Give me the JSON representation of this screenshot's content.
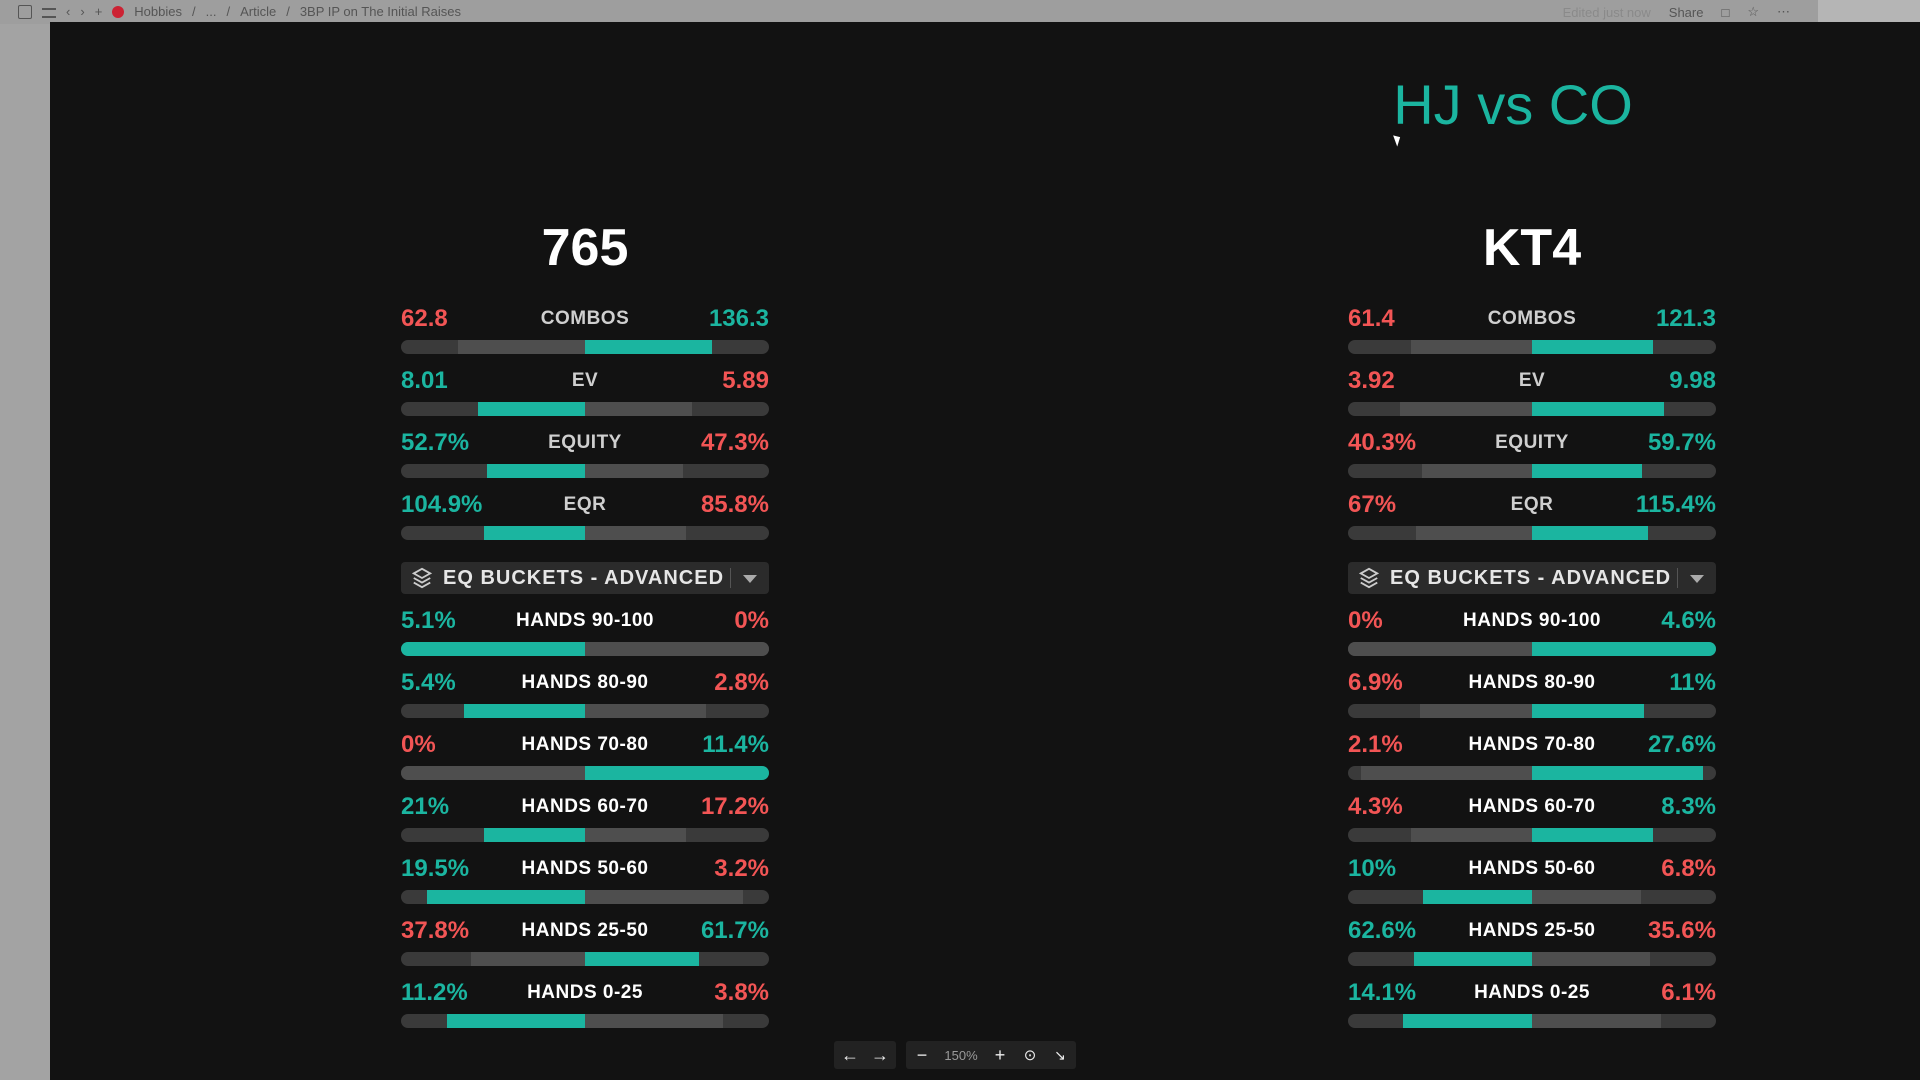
{
  "topbar": {
    "crumbs": [
      "Hobbies",
      "/",
      "...",
      "/",
      "Article",
      "/",
      "3BP IP on The Initial Raises"
    ],
    "edited": "Edited just now",
    "share": "Share"
  },
  "title": "HJ vs CO",
  "panels": [
    {
      "hand": "765",
      "stats": [
        {
          "label": "COMBOS",
          "left": "62.8",
          "right": "136.3",
          "left_color": "red",
          "right_color": "green",
          "fill_side": "right",
          "fill": 0.69
        },
        {
          "label": "EV",
          "left": "8.01",
          "right": "5.89",
          "left_color": "green",
          "right_color": "red",
          "fill_side": "left",
          "fill": 0.58
        },
        {
          "label": "EQUITY",
          "left": "52.7%",
          "right": "47.3%",
          "left_color": "green",
          "right_color": "red",
          "fill_side": "left",
          "fill": 0.53
        },
        {
          "label": "EQR",
          "left": "104.9%",
          "right": "85.8%",
          "left_color": "green",
          "right_color": "red",
          "fill_side": "left",
          "fill": 0.55
        }
      ],
      "bucket_select": "EQ BUCKETS - ADVANCED",
      "buckets": [
        {
          "label": "HANDS 90-100",
          "left": "5.1%",
          "right": "0%",
          "left_color": "green",
          "right_color": "red",
          "fill_side": "left",
          "fill": 1.0
        },
        {
          "label": "HANDS 80-90",
          "left": "5.4%",
          "right": "2.8%",
          "left_color": "green",
          "right_color": "red",
          "fill_side": "left",
          "fill": 0.66
        },
        {
          "label": "HANDS 70-80",
          "left": "0%",
          "right": "11.4%",
          "left_color": "red",
          "right_color": "green",
          "fill_side": "right",
          "fill": 1.0
        },
        {
          "label": "HANDS 60-70",
          "left": "21%",
          "right": "17.2%",
          "left_color": "green",
          "right_color": "red",
          "fill_side": "left",
          "fill": 0.55
        },
        {
          "label": "HANDS 50-60",
          "left": "19.5%",
          "right": "3.2%",
          "left_color": "green",
          "right_color": "red",
          "fill_side": "left",
          "fill": 0.86
        },
        {
          "label": "HANDS 25-50",
          "left": "37.8%",
          "right": "61.7%",
          "left_color": "red",
          "right_color": "green",
          "fill_side": "right",
          "fill": 0.62
        },
        {
          "label": "HANDS 0-25",
          "left": "11.2%",
          "right": "3.8%",
          "left_color": "green",
          "right_color": "red",
          "fill_side": "left",
          "fill": 0.75
        }
      ]
    },
    {
      "hand": "KT4",
      "stats": [
        {
          "label": "COMBOS",
          "left": "61.4",
          "right": "121.3",
          "left_color": "red",
          "right_color": "green",
          "fill_side": "right",
          "fill": 0.66
        },
        {
          "label": "EV",
          "left": "3.92",
          "right": "9.98",
          "left_color": "red",
          "right_color": "green",
          "fill_side": "right",
          "fill": 0.72
        },
        {
          "label": "EQUITY",
          "left": "40.3%",
          "right": "59.7%",
          "left_color": "red",
          "right_color": "green",
          "fill_side": "right",
          "fill": 0.6
        },
        {
          "label": "EQR",
          "left": "67%",
          "right": "115.4%",
          "left_color": "red",
          "right_color": "green",
          "fill_side": "right",
          "fill": 0.63
        }
      ],
      "bucket_select": "EQ BUCKETS - ADVANCED",
      "buckets": [
        {
          "label": "HANDS 90-100",
          "left": "0%",
          "right": "4.6%",
          "left_color": "red",
          "right_color": "green",
          "fill_side": "right",
          "fill": 1.0
        },
        {
          "label": "HANDS 80-90",
          "left": "6.9%",
          "right": "11%",
          "left_color": "red",
          "right_color": "green",
          "fill_side": "right",
          "fill": 0.61
        },
        {
          "label": "HANDS 70-80",
          "left": "2.1%",
          "right": "27.6%",
          "left_color": "red",
          "right_color": "green",
          "fill_side": "right",
          "fill": 0.93
        },
        {
          "label": "HANDS 60-70",
          "left": "4.3%",
          "right": "8.3%",
          "left_color": "red",
          "right_color": "green",
          "fill_side": "right",
          "fill": 0.66
        },
        {
          "label": "HANDS 50-60",
          "left": "10%",
          "right": "6.8%",
          "left_color": "green",
          "right_color": "red",
          "fill_side": "left",
          "fill": 0.59
        },
        {
          "label": "HANDS 25-50",
          "left": "62.6%",
          "right": "35.6%",
          "left_color": "green",
          "right_color": "red",
          "fill_side": "left",
          "fill": 0.64
        },
        {
          "label": "HANDS 0-25",
          "left": "14.1%",
          "right": "6.1%",
          "left_color": "green",
          "right_color": "red",
          "fill_side": "left",
          "fill": 0.7
        }
      ]
    }
  ],
  "viewer_toolbar": {
    "zoom": "150%"
  },
  "colors": {
    "teal": "#1bb5a0",
    "red": "#f25555",
    "background": "#121212"
  }
}
